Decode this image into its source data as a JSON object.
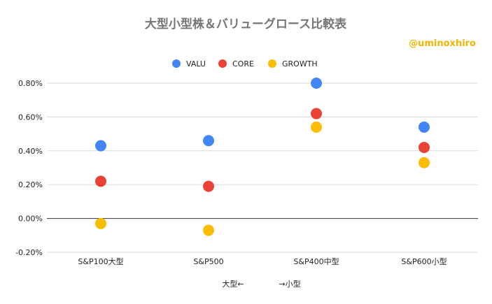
{
  "chart_data": {
    "type": "scatter",
    "title": "大型小型株＆バリューグロース比較表",
    "watermark": "@uminoxhiro",
    "categories": [
      "S&P100大型",
      "S&P500",
      "S&P400中型",
      "S&P600小型"
    ],
    "xlabel_left": "大型←",
    "xlabel_right": "→小型",
    "ylim": [
      -0.2,
      0.8
    ],
    "yticks": [
      -0.2,
      0.0,
      0.2,
      0.4,
      0.6,
      0.8
    ],
    "ytick_labels": [
      "-0.20%",
      "0.00%",
      "0.20%",
      "0.40%",
      "0.60%",
      "0.80%"
    ],
    "grid": true,
    "legend_position": "top",
    "series": [
      {
        "name": "VALU",
        "color": "#4285f4",
        "values": [
          0.43,
          0.46,
          0.8,
          0.54
        ]
      },
      {
        "name": "CORE",
        "color": "#ea4335",
        "values": [
          0.22,
          0.19,
          0.62,
          0.42
        ]
      },
      {
        "name": "GROWTH",
        "color": "#fbbc04",
        "values": [
          -0.03,
          -0.07,
          0.54,
          0.33
        ]
      }
    ]
  }
}
